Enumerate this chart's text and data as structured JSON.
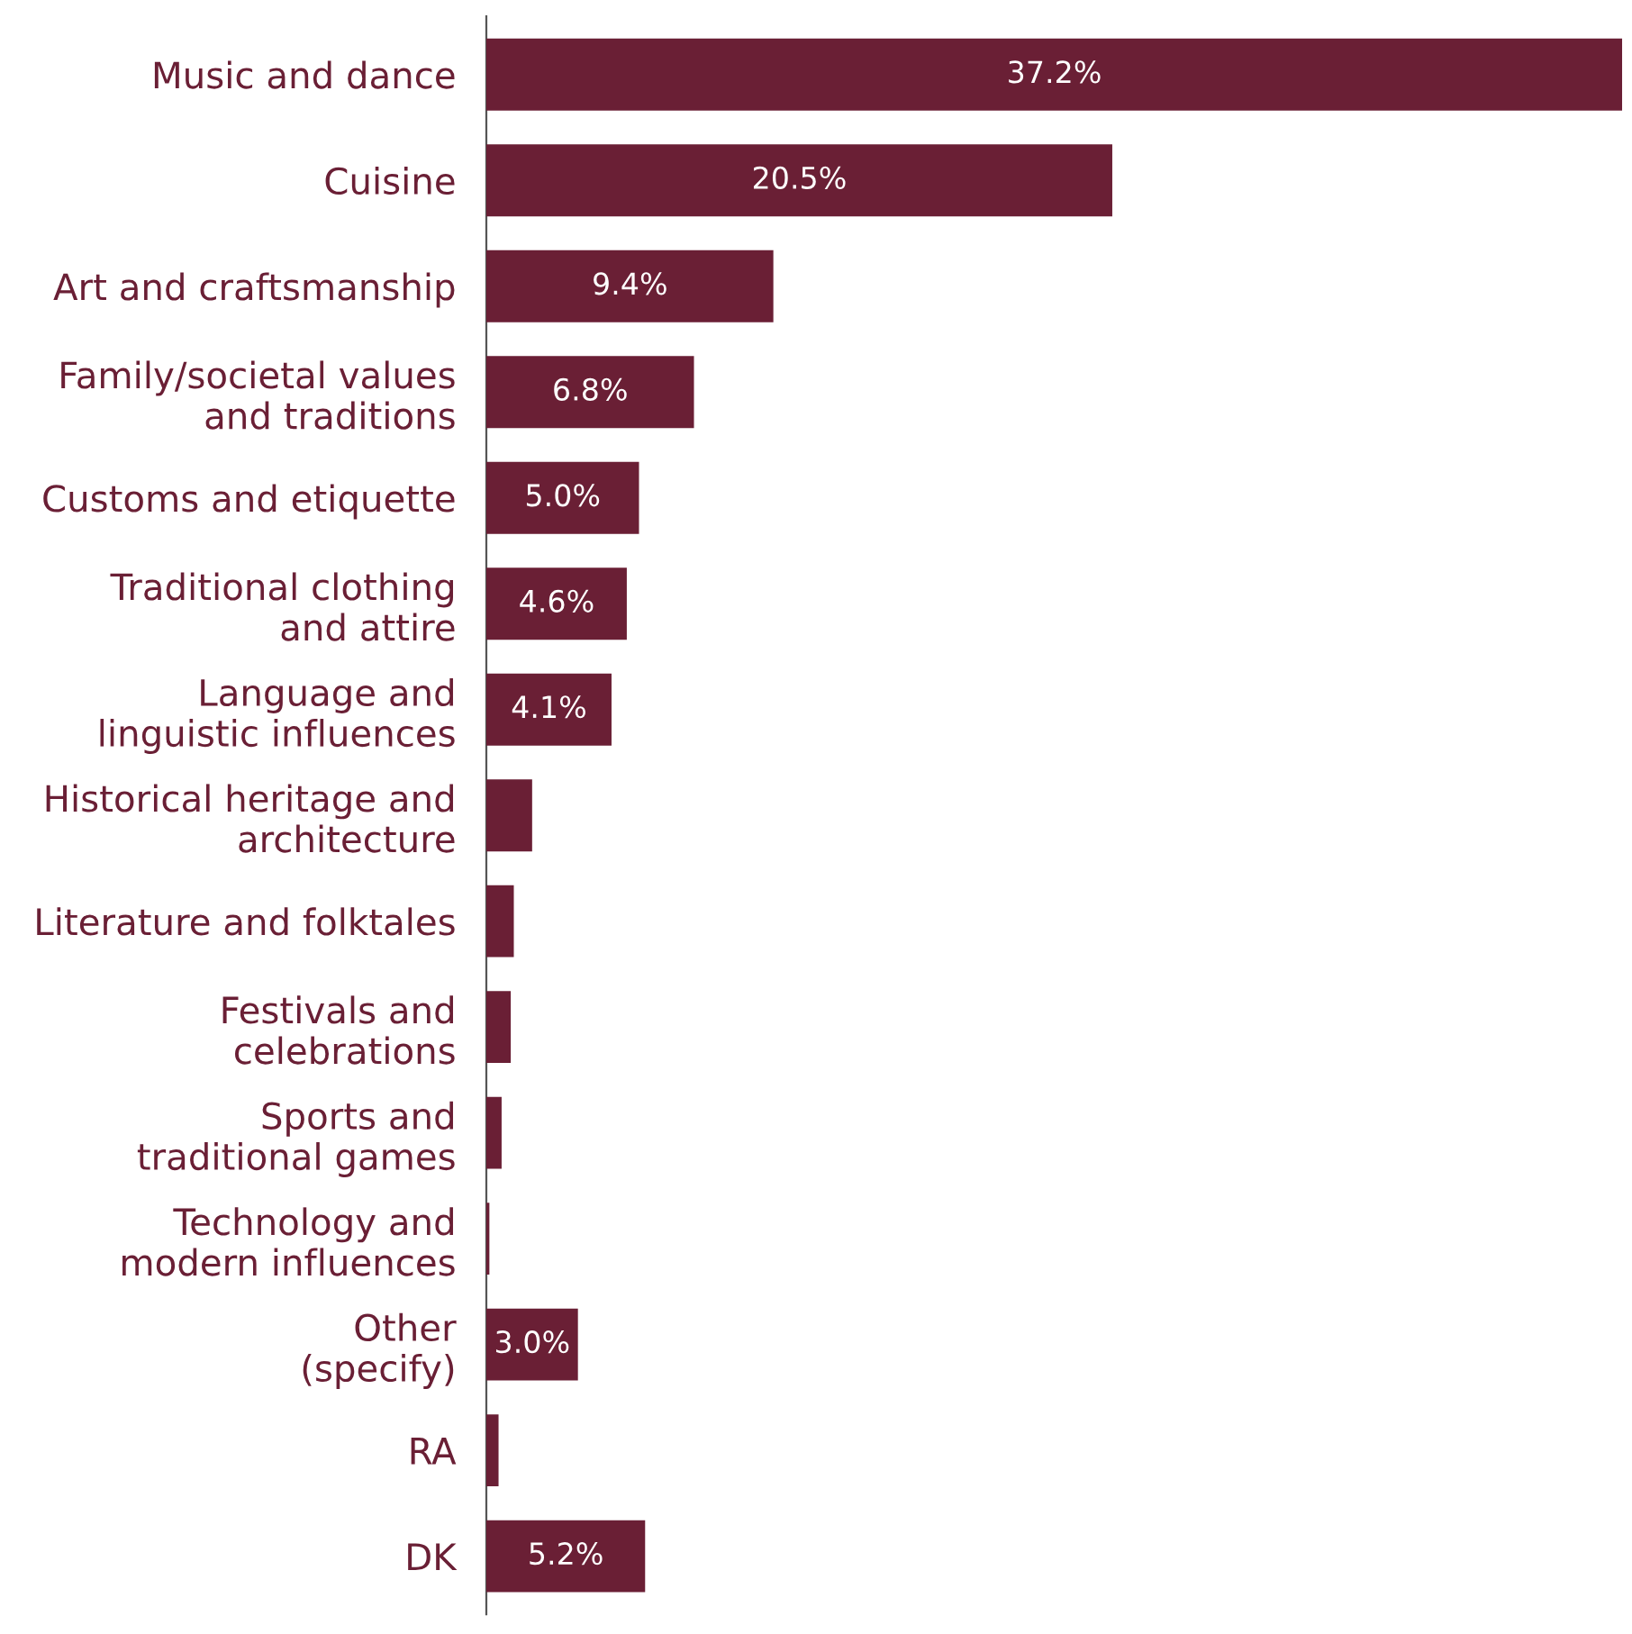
{
  "chart_data": {
    "type": "bar",
    "orientation": "horizontal",
    "color": "#6a1f35",
    "categories": [
      "Music and dance",
      "Cuisine",
      "Art and craftsmanship",
      "Family/societal values\nand traditions",
      "Customs and etiquette",
      "Traditional clothing\nand attire",
      "Language and\nlinguistic influences",
      "Historical heritage and\narchitecture",
      "Literature and folktales",
      "Festivals and\ncelebrations",
      "Sports and\ntraditional games",
      "Technology and\nmodern influences",
      "Other\n(specify)",
      "RA",
      "DK"
    ],
    "values": [
      37.2,
      20.5,
      9.4,
      6.8,
      5.0,
      4.6,
      4.1,
      1.5,
      0.9,
      0.8,
      0.5,
      0.1,
      3.0,
      0.4,
      5.2
    ],
    "value_labels": [
      "37.2%",
      "20.5%",
      "9.4%",
      "6.8%",
      "5.0%",
      "4.6%",
      "4.1%",
      null,
      null,
      null,
      null,
      null,
      "3.0%",
      null,
      "5.2%"
    ],
    "grid": false,
    "legend": false
  }
}
